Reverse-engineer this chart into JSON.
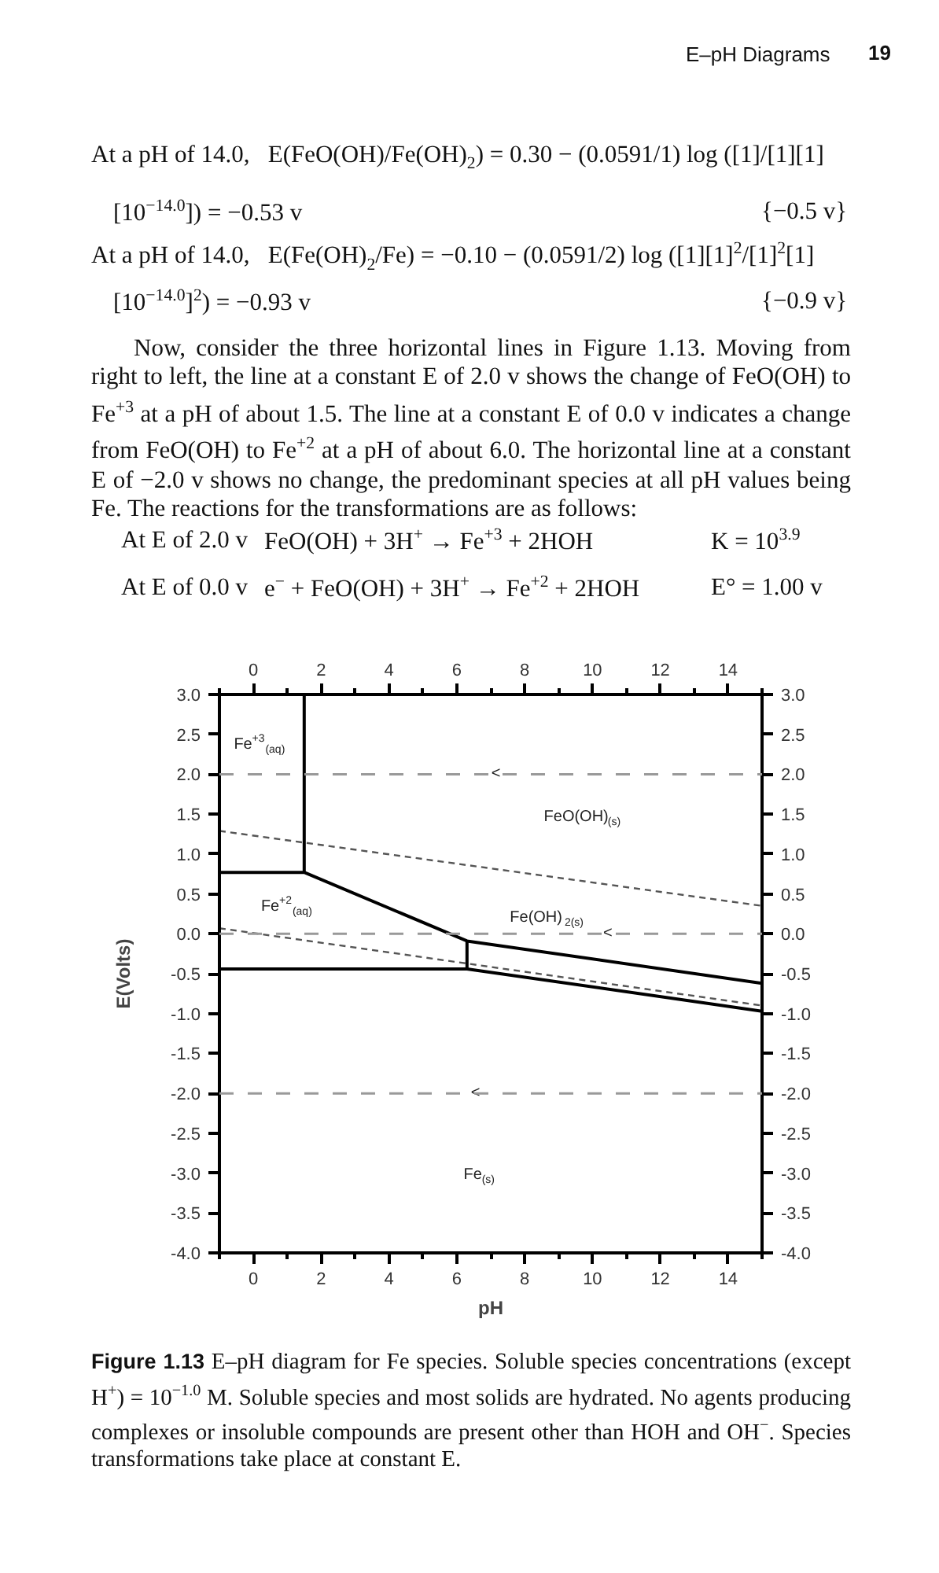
{
  "chart_data": {
    "type": "line",
    "xlabel": "pH",
    "ylabel": "E(Volts)",
    "xlim": [
      -1,
      15
    ],
    "ylim": [
      -4,
      3
    ],
    "x2lim": [
      -1,
      15
    ],
    "y2lim": [
      -4,
      3
    ],
    "xticks": [
      {
        "value": -1,
        "label": null
      },
      0,
      {
        "value": 1,
        "label": null
      },
      2,
      {
        "value": 3,
        "label": null
      },
      4,
      {
        "value": 5,
        "label": null
      },
      6,
      {
        "value": 7,
        "label": null
      },
      8,
      {
        "value": 9,
        "label": null
      },
      10,
      {
        "value": 11,
        "label": null
      },
      12,
      {
        "value": 13,
        "label": null
      },
      14,
      {
        "value": 15,
        "label": null
      }
    ],
    "x2ticks": [
      {
        "value": -1,
        "label": null
      },
      0,
      {
        "value": 1,
        "label": null
      },
      2,
      {
        "value": 3,
        "label": null
      },
      4,
      {
        "value": 5,
        "label": null
      },
      6,
      {
        "value": 7,
        "label": null
      },
      8,
      {
        "value": 9,
        "label": null
      },
      10,
      {
        "value": 11,
        "label": null
      },
      12,
      {
        "value": 13,
        "label": null
      },
      14,
      {
        "value": 15,
        "label": null
      }
    ],
    "yticks": [
      {
        "value": 3,
        "label": "3.0"
      },
      {
        "value": 2.5,
        "label": "2.5"
      },
      {
        "value": 2,
        "label": "2.0"
      },
      {
        "value": 1.5,
        "label": "1.5"
      },
      {
        "value": 1,
        "label": "1.0"
      },
      {
        "value": 0.5,
        "label": "0.5"
      },
      {
        "value": 0,
        "label": "0.0"
      },
      {
        "value": -0.5,
        "label": "-0.5"
      },
      {
        "value": -1,
        "label": "-1.0"
      },
      {
        "value": -1.5,
        "label": "-1.5"
      },
      {
        "value": -2,
        "label": "-2.0"
      },
      {
        "value": -2.5,
        "label": "-2.5"
      },
      {
        "value": -3,
        "label": "-3.0"
      },
      {
        "value": -3.5,
        "label": "-3.5"
      },
      {
        "value": -4,
        "label": "-4.0"
      }
    ],
    "y2ticks": [
      {
        "value": 3,
        "label": "3.0"
      },
      {
        "value": 2.5,
        "label": "2.5"
      },
      {
        "value": 2,
        "label": "2.0"
      },
      {
        "value": 1.5,
        "label": "1.5"
      },
      {
        "value": 1,
        "label": "1.0"
      },
      {
        "value": 0.5,
        "label": "0.5"
      },
      {
        "value": 0,
        "label": "0.0"
      },
      {
        "value": -0.5,
        "label": "-0.5"
      },
      {
        "value": -1,
        "label": "-1.0"
      },
      {
        "value": -1.5,
        "label": "-1.5"
      },
      {
        "value": -2,
        "label": "-2.0"
      },
      {
        "value": -2.5,
        "label": "-2.5"
      },
      {
        "value": -3,
        "label": "-3.0"
      },
      {
        "value": -3.5,
        "label": "-3.5"
      },
      {
        "value": -4,
        "label": "-4.0"
      }
    ],
    "grid": false,
    "marker": "none",
    "series": [
      {
        "color": "#000000",
        "line_style": "solid",
        "x": [
          1.5,
          1.5
        ],
        "values": [
          3.0,
          0.77
        ]
      },
      {
        "color": "#000000",
        "line_style": "solid",
        "x": [
          -1,
          1.5,
          6.3,
          15
        ],
        "values": [
          0.77,
          0.77,
          -0.09,
          -0.62
        ]
      },
      {
        "color": "#000000",
        "line_style": "solid",
        "x": [
          6.3,
          6.3
        ],
        "values": [
          -0.09,
          -0.44
        ]
      },
      {
        "color": "#000000",
        "line_style": "solid",
        "x": [
          -1,
          6.3,
          15
        ],
        "values": [
          -0.44,
          -0.44,
          -0.97
        ]
      },
      {
        "color": "#555555",
        "line_style": "dashed",
        "x": [
          -1,
          15
        ],
        "values": [
          1.29,
          0.35
        ]
      },
      {
        "color": "#555555",
        "line_style": "dashed",
        "x": [
          -1,
          15
        ],
        "values": [
          0.07,
          -0.9
        ]
      }
    ],
    "ref_lines": [
      {
        "axis": "y",
        "value": 2.0,
        "color": "#999999",
        "line_style": "dashed"
      },
      {
        "axis": "y",
        "value": 0.0,
        "color": "#999999",
        "line_style": "dashed"
      },
      {
        "axis": "y",
        "value": -2.0,
        "color": "#999999",
        "line_style": "dashed"
      }
    ],
    "annotations": [
      "E–pH Diagrams",
      "19",
      "At a pH of 14.0,   E(FeO(OH)/Fe(OH)$_{2}$) = 0.30 − (0.0591/1) log ([1]/[1][1]",
      "[10$^{−14.0}$]) = −0.53 v",
      "{−0.5 v}",
      "At a pH of 14.0,   E(Fe(OH)$_{2}$/Fe) = −0.10 − (0.0591/2) log ([1][1]$^{2}$/[1]$^{2}$[1]",
      "[10$^{−14.0}$]$^{2}$) = −0.93 v",
      "{−0.9 v}",
      "Now, consider the three horizontal lines in Figure 1.13. Moving from right to left, the line at a constant E of 2.0 v shows the change of FeO(OH) to Fe$^{+3}$ at a pH of about 1.5. The line at a constant E of 0.0 v indicates a change from FeO(OH) to Fe$^{+2}$ at a pH of about 6.0. The horizontal line at a constant E of −2.0 v shows no change, the predominant species at all pH values being Fe. The reactions for the transformations are as follows:",
      "At E of 2.0 v",
      "FeO(OH) + 3H$^{+}$ → Fe$^{+3}$ + 2HOH",
      "K = 10$^{3.9}$",
      "At E of 0.0 v",
      "e$^{−}$ + FeO(OH) + 3H$^{+}$ → Fe$^{+2}$ + 2HOH",
      "E° = 1.00 v",
      "Figure 1.13",
      "E–pH diagram for Fe species. Soluble species concentrations (except H$^{+}$) = 10$^{−1.0}$ M. Soluble species and most solids are hydrated. No agents producing complexes or insoluble compounds are present other than HOH and OH$^{−}$. Species transformations take place at constant E.",
      "Fe$^{+3}$$_{(aq)}$",
      "FeO(OH)$_{(s)}$",
      "Fe$^{+2}$$_{(aq)}$",
      "Fe(OH)$_{2(s)}$",
      "Fe$_{(s)}$",
      {
        "text": "<",
        "x": 7.15,
        "y": 2.0
      },
      {
        "text": "<",
        "x": 10.45,
        "y": 0.0
      },
      {
        "text": "<",
        "x": 6.55,
        "y": -2.0
      }
    ]
  }
}
